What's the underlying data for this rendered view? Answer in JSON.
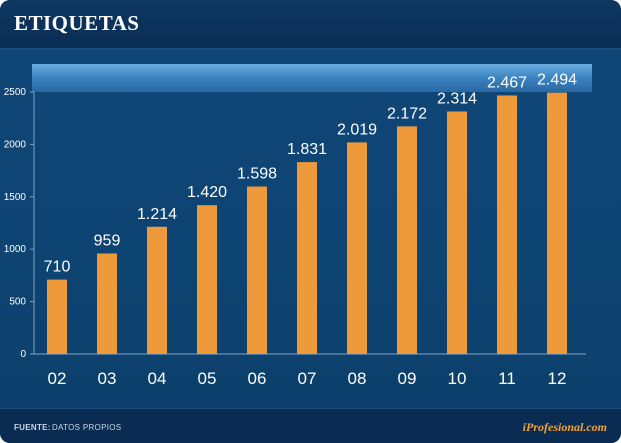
{
  "title": "ETIQUETAS",
  "footer": {
    "source_label": "FUENTE:",
    "source_value": "DATOS PROPIOS",
    "brand": "iProfesional.com"
  },
  "colors": {
    "bar": "#ee9a3a",
    "background": "#0e4472",
    "text": "#ffffff"
  },
  "chart_data": {
    "type": "bar",
    "title": "ETIQUETAS",
    "xlabel": "",
    "ylabel": "",
    "categories": [
      "02",
      "03",
      "04",
      "05",
      "06",
      "07",
      "08",
      "09",
      "10",
      "11",
      "12"
    ],
    "values": [
      710,
      959,
      1214,
      1420,
      1598,
      1831,
      2019,
      2172,
      2314,
      2467,
      2494
    ],
    "labels": [
      "710",
      "959",
      "1.214",
      "1.420",
      "1.598",
      "1.831",
      "2.019",
      "2.172",
      "2.314",
      "2.467",
      "2.494"
    ],
    "ylim": [
      0,
      2500
    ],
    "yticks": [
      0,
      500,
      1000,
      1500,
      2000,
      2500
    ],
    "grid": false,
    "legend": "none"
  }
}
